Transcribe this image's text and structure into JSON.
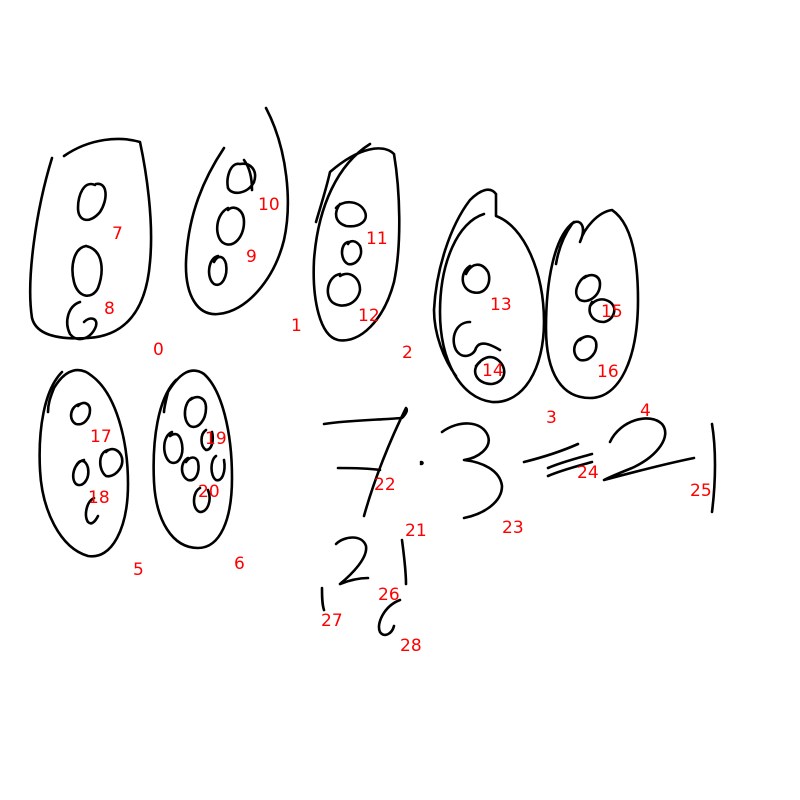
{
  "colors": {
    "ink": "#000000",
    "label": "#ff0000",
    "background": "#ffffff"
  },
  "labels": [
    "0",
    "1",
    "2",
    "3",
    "4",
    "5",
    "6",
    "7",
    "8",
    "9",
    "10",
    "11",
    "12",
    "13",
    "14",
    "15",
    "16",
    "17",
    "18",
    "19",
    "20",
    "21",
    "22",
    "23",
    "24",
    "25",
    "26",
    "27",
    "28"
  ]
}
